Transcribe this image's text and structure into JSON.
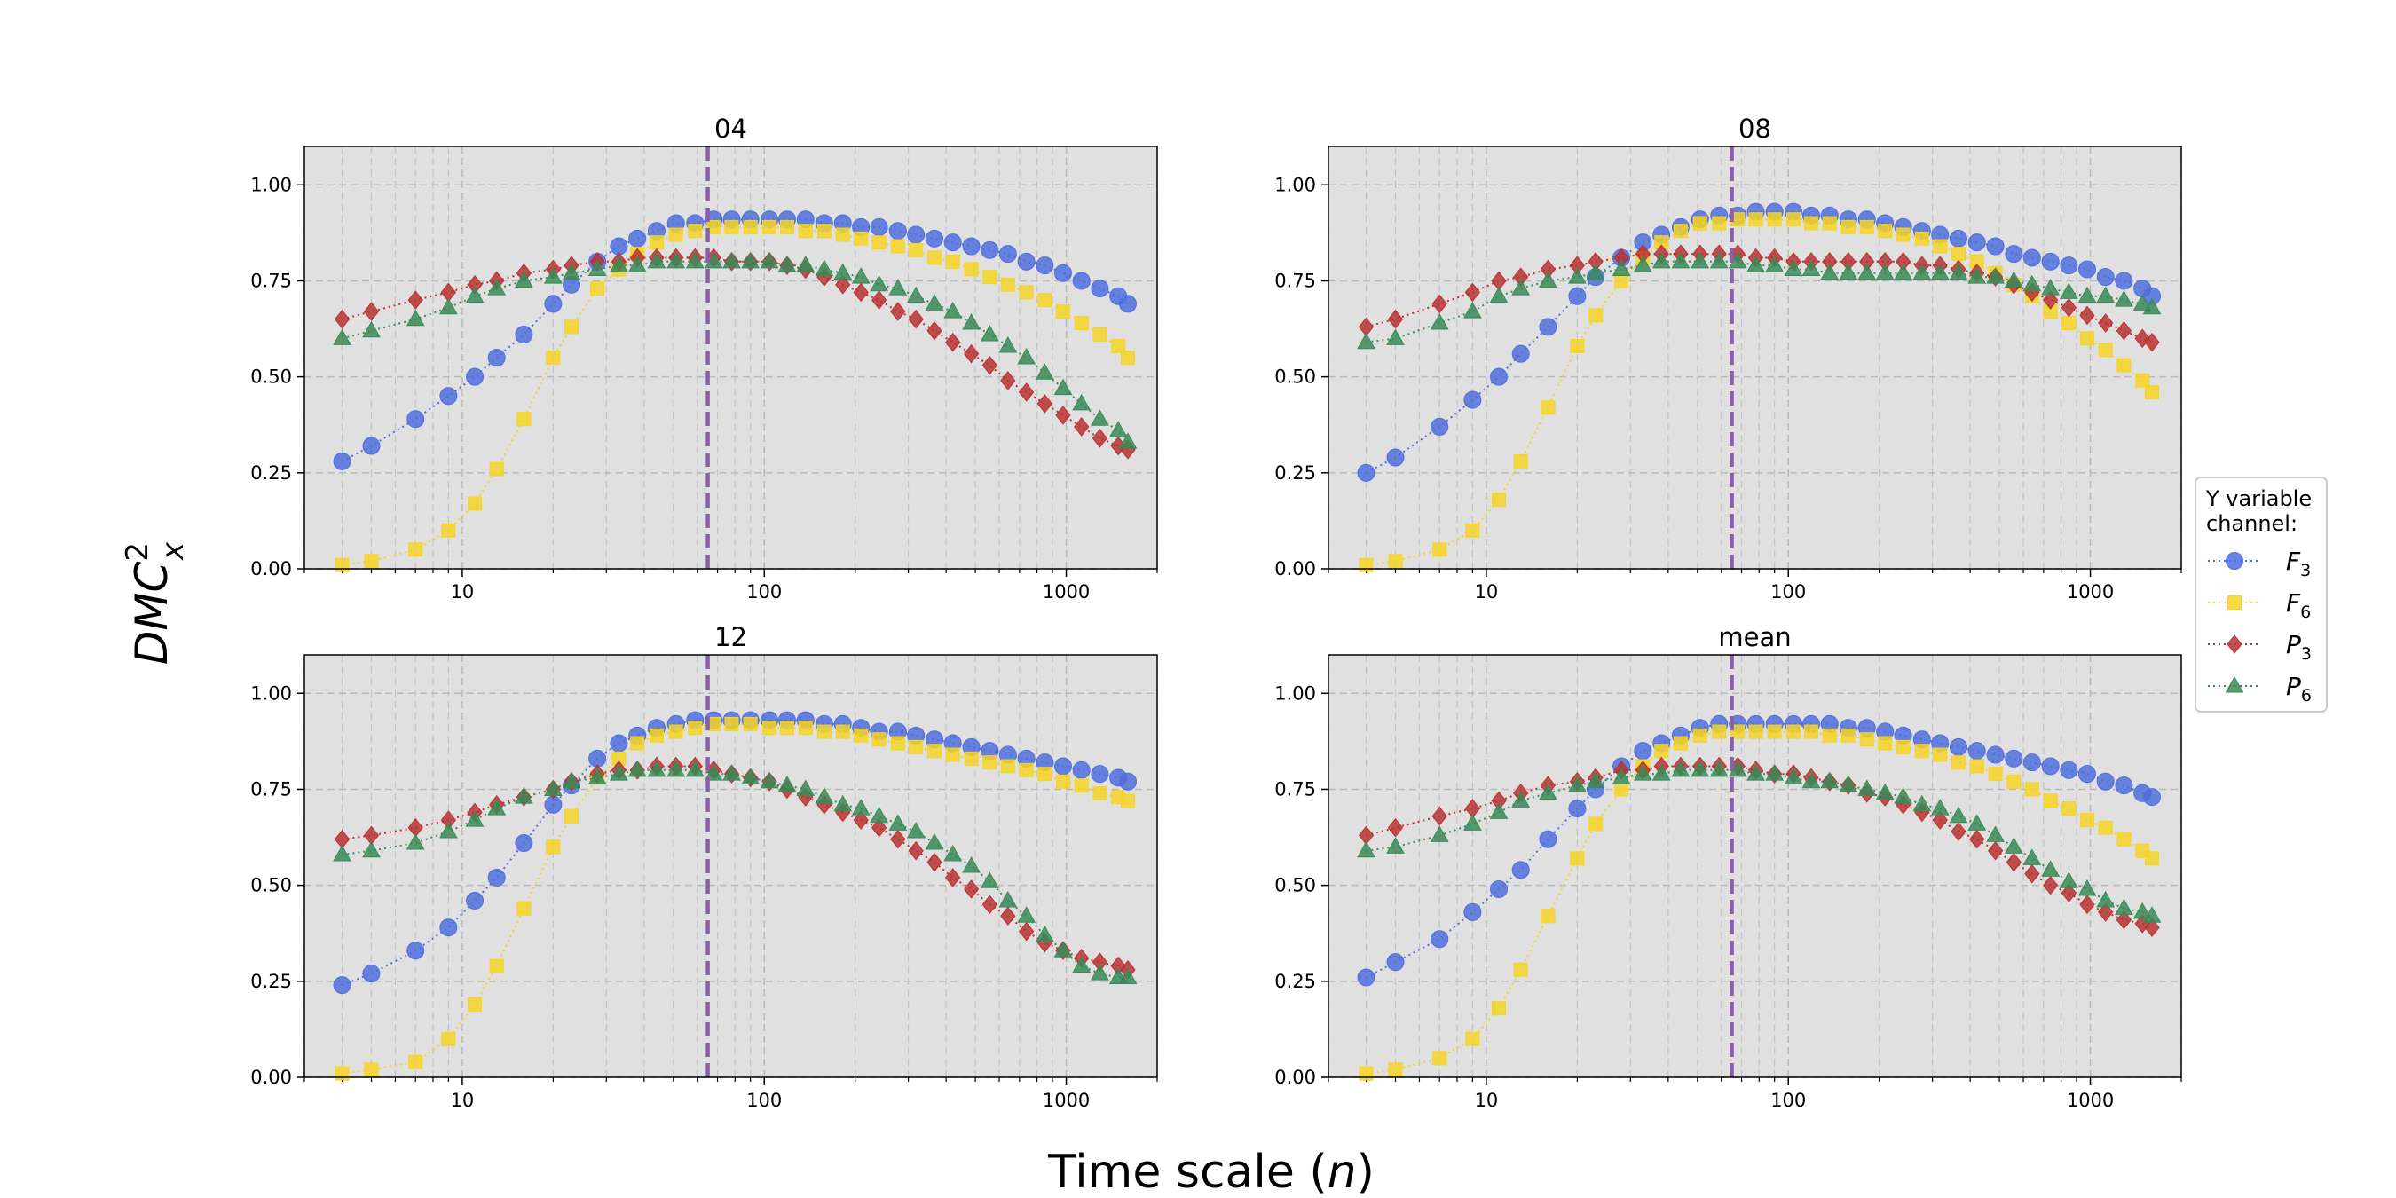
{
  "figure": {
    "xlabel_prefix": "Time scale (",
    "xlabel_var": "n",
    "xlabel_suffix": ")",
    "ylabel": "DMC",
    "ylabel_sup": "2",
    "ylabel_sub": "x"
  },
  "legend": {
    "title_line1": "Y variable",
    "title_line2": "channel:",
    "entries": [
      {
        "base": "F",
        "sub": "3"
      },
      {
        "base": "F",
        "sub": "6"
      },
      {
        "base": "P",
        "sub": "3"
      },
      {
        "base": "P",
        "sub": "6"
      }
    ]
  },
  "chart_data": {
    "type": "line",
    "x_scale": "log",
    "xlim": [
      3,
      2000
    ],
    "ylim": [
      0,
      1.1
    ],
    "x_ticks": [
      10,
      100,
      1000
    ],
    "x_tick_labels": [
      "10",
      "100",
      "1000"
    ],
    "y_ticks": [
      0,
      0.25,
      0.5,
      0.75,
      1.0
    ],
    "y_tick_labels": [
      "0.00",
      "0.25",
      "0.50",
      "0.75",
      "1.00"
    ],
    "grid": true,
    "legend_placement": "right",
    "vline_x": 65,
    "vline_color": "#8a5fa8",
    "background": "#e0e0e0",
    "series_styles": [
      {
        "color": "#4f6fdc",
        "marker": "circle"
      },
      {
        "color": "#f5d327",
        "marker": "square"
      },
      {
        "color": "#b83232",
        "marker": "diamond"
      },
      {
        "color": "#3a8a57",
        "marker": "triangle"
      }
    ],
    "x": [
      4,
      5,
      7,
      9,
      11,
      13,
      16,
      20,
      23,
      28,
      33,
      38,
      44,
      51,
      59,
      68,
      78,
      90,
      104,
      119,
      137,
      158,
      182,
      209,
      240,
      277,
      318,
      366,
      421,
      485,
      558,
      641,
      738,
      849,
      976,
      1123,
      1292,
      1487,
      1600
    ],
    "panels": [
      {
        "title": "04",
        "series": [
          {
            "name": "F3",
            "values": [
              0.28,
              0.32,
              0.39,
              0.45,
              0.5,
              0.55,
              0.61,
              0.69,
              0.74,
              0.8,
              0.84,
              0.86,
              0.88,
              0.9,
              0.9,
              0.91,
              0.91,
              0.91,
              0.91,
              0.91,
              0.91,
              0.9,
              0.9,
              0.89,
              0.89,
              0.88,
              0.87,
              0.86,
              0.85,
              0.84,
              0.83,
              0.82,
              0.8,
              0.79,
              0.77,
              0.75,
              0.73,
              0.71,
              0.69
            ]
          },
          {
            "name": "F6",
            "values": [
              0.01,
              0.02,
              0.05,
              0.1,
              0.17,
              0.26,
              0.39,
              0.55,
              0.63,
              0.73,
              0.78,
              0.82,
              0.85,
              0.87,
              0.88,
              0.89,
              0.89,
              0.89,
              0.89,
              0.89,
              0.88,
              0.88,
              0.87,
              0.86,
              0.85,
              0.84,
              0.83,
              0.81,
              0.8,
              0.78,
              0.76,
              0.74,
              0.72,
              0.7,
              0.67,
              0.64,
              0.61,
              0.58,
              0.55
            ]
          },
          {
            "name": "P3",
            "values": [
              0.65,
              0.67,
              0.7,
              0.72,
              0.74,
              0.75,
              0.77,
              0.78,
              0.79,
              0.8,
              0.8,
              0.81,
              0.81,
              0.81,
              0.81,
              0.81,
              0.8,
              0.8,
              0.8,
              0.79,
              0.78,
              0.76,
              0.74,
              0.72,
              0.7,
              0.67,
              0.65,
              0.62,
              0.59,
              0.56,
              0.53,
              0.49,
              0.46,
              0.43,
              0.4,
              0.37,
              0.34,
              0.32,
              0.31
            ]
          },
          {
            "name": "P6",
            "values": [
              0.6,
              0.62,
              0.65,
              0.68,
              0.71,
              0.73,
              0.75,
              0.76,
              0.77,
              0.78,
              0.79,
              0.79,
              0.8,
              0.8,
              0.8,
              0.8,
              0.8,
              0.8,
              0.8,
              0.79,
              0.79,
              0.78,
              0.77,
              0.76,
              0.74,
              0.73,
              0.71,
              0.69,
              0.67,
              0.64,
              0.61,
              0.58,
              0.55,
              0.51,
              0.47,
              0.43,
              0.39,
              0.36,
              0.33
            ]
          }
        ]
      },
      {
        "title": "08",
        "series": [
          {
            "name": "F3",
            "values": [
              0.25,
              0.29,
              0.37,
              0.44,
              0.5,
              0.56,
              0.63,
              0.71,
              0.76,
              0.81,
              0.85,
              0.87,
              0.89,
              0.91,
              0.92,
              0.92,
              0.93,
              0.93,
              0.93,
              0.92,
              0.92,
              0.91,
              0.91,
              0.9,
              0.89,
              0.88,
              0.87,
              0.86,
              0.85,
              0.84,
              0.82,
              0.81,
              0.8,
              0.79,
              0.78,
              0.76,
              0.75,
              0.73,
              0.71
            ]
          },
          {
            "name": "F6",
            "values": [
              0.01,
              0.02,
              0.05,
              0.1,
              0.18,
              0.28,
              0.42,
              0.58,
              0.66,
              0.75,
              0.81,
              0.85,
              0.88,
              0.9,
              0.9,
              0.91,
              0.91,
              0.91,
              0.91,
              0.9,
              0.9,
              0.89,
              0.89,
              0.88,
              0.87,
              0.86,
              0.84,
              0.82,
              0.8,
              0.77,
              0.74,
              0.71,
              0.67,
              0.64,
              0.6,
              0.57,
              0.53,
              0.49,
              0.46
            ]
          },
          {
            "name": "P3",
            "values": [
              0.63,
              0.65,
              0.69,
              0.72,
              0.75,
              0.76,
              0.78,
              0.79,
              0.8,
              0.81,
              0.82,
              0.82,
              0.82,
              0.82,
              0.82,
              0.82,
              0.81,
              0.81,
              0.8,
              0.8,
              0.8,
              0.8,
              0.8,
              0.8,
              0.8,
              0.79,
              0.79,
              0.78,
              0.77,
              0.76,
              0.74,
              0.72,
              0.7,
              0.68,
              0.66,
              0.64,
              0.62,
              0.6,
              0.59
            ]
          },
          {
            "name": "P6",
            "values": [
              0.59,
              0.6,
              0.64,
              0.67,
              0.71,
              0.73,
              0.75,
              0.76,
              0.77,
              0.78,
              0.79,
              0.8,
              0.8,
              0.8,
              0.8,
              0.8,
              0.79,
              0.79,
              0.78,
              0.78,
              0.77,
              0.77,
              0.77,
              0.77,
              0.77,
              0.77,
              0.77,
              0.77,
              0.76,
              0.76,
              0.75,
              0.74,
              0.73,
              0.72,
              0.71,
              0.71,
              0.7,
              0.69,
              0.68
            ]
          }
        ]
      },
      {
        "title": "12",
        "series": [
          {
            "name": "F3",
            "values": [
              0.24,
              0.27,
              0.33,
              0.39,
              0.46,
              0.52,
              0.61,
              0.71,
              0.76,
              0.83,
              0.87,
              0.89,
              0.91,
              0.92,
              0.93,
              0.93,
              0.93,
              0.93,
              0.93,
              0.93,
              0.93,
              0.92,
              0.92,
              0.91,
              0.9,
              0.9,
              0.89,
              0.88,
              0.87,
              0.86,
              0.85,
              0.84,
              0.83,
              0.82,
              0.81,
              0.8,
              0.79,
              0.78,
              0.77
            ]
          },
          {
            "name": "F6",
            "values": [
              0.01,
              0.02,
              0.04,
              0.1,
              0.19,
              0.29,
              0.44,
              0.6,
              0.68,
              0.78,
              0.83,
              0.87,
              0.89,
              0.9,
              0.91,
              0.92,
              0.92,
              0.92,
              0.91,
              0.91,
              0.91,
              0.9,
              0.9,
              0.89,
              0.88,
              0.87,
              0.86,
              0.85,
              0.84,
              0.83,
              0.82,
              0.81,
              0.8,
              0.79,
              0.77,
              0.76,
              0.74,
              0.73,
              0.72
            ]
          },
          {
            "name": "P3",
            "values": [
              0.62,
              0.63,
              0.65,
              0.67,
              0.69,
              0.71,
              0.73,
              0.75,
              0.77,
              0.79,
              0.8,
              0.8,
              0.81,
              0.81,
              0.81,
              0.8,
              0.79,
              0.78,
              0.77,
              0.75,
              0.73,
              0.71,
              0.69,
              0.67,
              0.65,
              0.62,
              0.59,
              0.56,
              0.52,
              0.49,
              0.45,
              0.42,
              0.38,
              0.35,
              0.33,
              0.31,
              0.3,
              0.29,
              0.28
            ]
          },
          {
            "name": "P6",
            "values": [
              0.58,
              0.59,
              0.61,
              0.64,
              0.67,
              0.7,
              0.73,
              0.75,
              0.77,
              0.78,
              0.79,
              0.8,
              0.8,
              0.8,
              0.8,
              0.79,
              0.79,
              0.78,
              0.77,
              0.76,
              0.75,
              0.73,
              0.71,
              0.7,
              0.68,
              0.66,
              0.64,
              0.61,
              0.58,
              0.55,
              0.51,
              0.46,
              0.42,
              0.37,
              0.33,
              0.29,
              0.27,
              0.26,
              0.26
            ]
          }
        ]
      },
      {
        "title": "mean",
        "series": [
          {
            "name": "F3",
            "values": [
              0.26,
              0.3,
              0.36,
              0.43,
              0.49,
              0.54,
              0.62,
              0.7,
              0.75,
              0.81,
              0.85,
              0.87,
              0.89,
              0.91,
              0.92,
              0.92,
              0.92,
              0.92,
              0.92,
              0.92,
              0.92,
              0.91,
              0.91,
              0.9,
              0.89,
              0.88,
              0.87,
              0.86,
              0.85,
              0.84,
              0.83,
              0.82,
              0.81,
              0.8,
              0.79,
              0.77,
              0.76,
              0.74,
              0.73
            ]
          },
          {
            "name": "F6",
            "values": [
              0.01,
              0.02,
              0.05,
              0.1,
              0.18,
              0.28,
              0.42,
              0.57,
              0.66,
              0.75,
              0.81,
              0.85,
              0.87,
              0.89,
              0.9,
              0.9,
              0.9,
              0.9,
              0.9,
              0.9,
              0.89,
              0.89,
              0.88,
              0.87,
              0.86,
              0.85,
              0.84,
              0.82,
              0.81,
              0.79,
              0.77,
              0.75,
              0.72,
              0.7,
              0.67,
              0.65,
              0.62,
              0.59,
              0.57
            ]
          },
          {
            "name": "P3",
            "values": [
              0.63,
              0.65,
              0.68,
              0.7,
              0.72,
              0.74,
              0.76,
              0.77,
              0.78,
              0.8,
              0.8,
              0.81,
              0.81,
              0.81,
              0.81,
              0.81,
              0.8,
              0.79,
              0.79,
              0.78,
              0.77,
              0.76,
              0.74,
              0.73,
              0.71,
              0.69,
              0.67,
              0.64,
              0.62,
              0.59,
              0.56,
              0.53,
              0.5,
              0.48,
              0.45,
              0.43,
              0.41,
              0.4,
              0.39
            ]
          },
          {
            "name": "P6",
            "values": [
              0.59,
              0.6,
              0.63,
              0.66,
              0.69,
              0.72,
              0.74,
              0.76,
              0.77,
              0.78,
              0.79,
              0.79,
              0.8,
              0.8,
              0.8,
              0.8,
              0.79,
              0.79,
              0.78,
              0.77,
              0.77,
              0.76,
              0.75,
              0.74,
              0.73,
              0.71,
              0.7,
              0.68,
              0.66,
              0.63,
              0.6,
              0.57,
              0.54,
              0.51,
              0.49,
              0.46,
              0.44,
              0.43,
              0.42
            ]
          }
        ]
      }
    ]
  }
}
